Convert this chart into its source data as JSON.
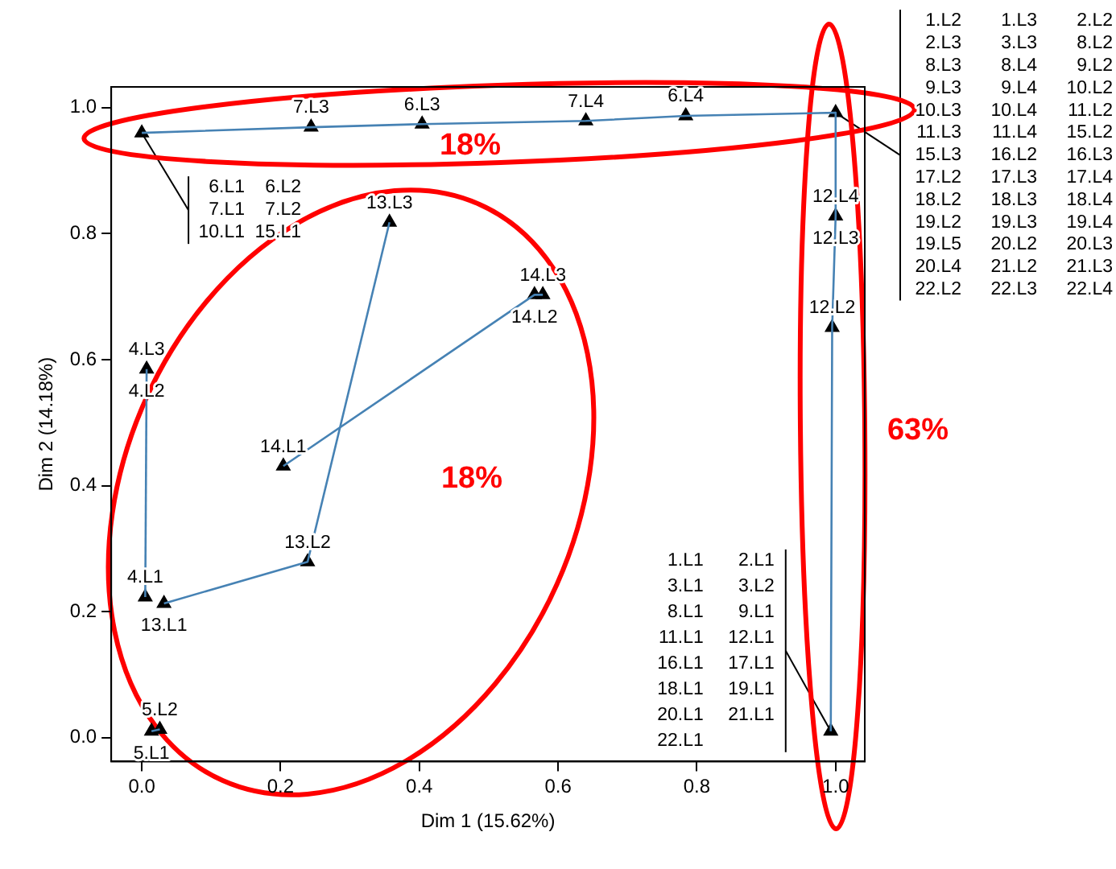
{
  "chart_data": {
    "type": "scatter",
    "xlabel": "Dim 1 (15.62%)",
    "ylabel": "Dim 2 (14.18%)",
    "xlim": [
      -0.044,
      1.042
    ],
    "ylim": [
      -0.038,
      1.033
    ],
    "xticks": [
      {
        "value": 0,
        "label": "0.0"
      },
      0.2,
      0.4,
      0.6,
      0.8,
      {
        "value": 1,
        "label": "1.0"
      }
    ],
    "yticks": [
      {
        "value": 0,
        "label": "0.0"
      },
      0.2,
      0.4,
      0.6,
      0.8,
      {
        "value": 1,
        "label": "1.0"
      }
    ],
    "grid": false,
    "legend": false,
    "series": [
      {
        "type": "line",
        "color": "#4682b4",
        "marker": "none",
        "x": [
          0,
          0.244,
          0.404,
          0.64,
          0.784,
          1
        ],
        "values": [
          0.96,
          0.969,
          0.974,
          0.979,
          0.987,
          0.992
        ]
      },
      {
        "type": "line",
        "color": "#4682b4",
        "marker": "none",
        "x": [
          1,
          1,
          0.995,
          0.993
        ],
        "values": [
          0.992,
          0.828,
          0.651,
          0.01
        ]
      },
      {
        "type": "line",
        "color": "#4682b4",
        "marker": "none",
        "x": [
          0.005,
          0.007
        ],
        "values": [
          0.223,
          0.585
        ]
      },
      {
        "type": "line",
        "color": "#4682b4",
        "marker": "none",
        "x": [
          0.032,
          0.239,
          0.357
        ],
        "values": [
          0.213,
          0.279,
          0.818
        ]
      },
      {
        "type": "line",
        "color": "#4682b4",
        "marker": "none",
        "x": [
          0.204,
          0.566,
          0.578
        ],
        "values": [
          0.431,
          0.703,
          0.703
        ]
      },
      {
        "type": "line",
        "color": "#4682b4",
        "marker": "none",
        "x": [
          0.014,
          0.026
        ],
        "values": [
          0.01,
          0.013
        ]
      },
      {
        "color": "#000000",
        "marker": "triangle",
        "x": [
          0,
          0.244,
          0.404,
          0.64,
          0.784,
          1,
          1,
          0.995,
          0.993,
          0.357,
          0.578,
          0.566,
          0.007,
          0.204,
          0.239,
          0.005,
          0.032,
          0.026,
          0.014
        ],
        "values": [
          0.96,
          0.969,
          0.974,
          0.979,
          0.987,
          0.992,
          0.828,
          0.651,
          0.01,
          0.818,
          0.703,
          0.703,
          0.585,
          0.431,
          0.279,
          0.223,
          0.213,
          0.013,
          0.01
        ]
      }
    ],
    "annotations": [
      "18%",
      "18%",
      "63%",
      {
        "text": "6.L1",
        "x": 0,
        "y": 0.96
      },
      "6.L2",
      "7.L1",
      "7.L2",
      "10.L1",
      "15.L1",
      "1.L2",
      "1.L3",
      "2.L2",
      "2.L3",
      "3.L3",
      "8.L2",
      "8.L3",
      "8.L4",
      "9.L2",
      "9.L3",
      "9.L4",
      "10.L2",
      "10.L3",
      "10.L4",
      "11.L2",
      {
        "text": "11.L3",
        "x": 1,
        "y": 0.992
      },
      "11.L4",
      "15.L2",
      "15.L3",
      "16.L2",
      "16.L3",
      "17.L2",
      "17.L3",
      "17.L4",
      "18.L2",
      "18.L3",
      "18.L4",
      "19.L2",
      "19.L3",
      "19.L4",
      "19.L5",
      "20.L2",
      "20.L3",
      "20.L4",
      "21.L2",
      "21.L3",
      "22.L2",
      "22.L3",
      "22.L4",
      "1.L1",
      "2.L1",
      "3.L1",
      "3.L2",
      "8.L1",
      "9.L1",
      "11.L1",
      {
        "text": "12.L1",
        "x": 0.993,
        "y": 0.01
      },
      "16.L1",
      "17.L1",
      "18.L1",
      "19.L1",
      "20.L1",
      "21.L1",
      "22.L1",
      {
        "text": "7.L3",
        "x": 0.244,
        "y": 0.969
      },
      {
        "text": "6.L3",
        "x": 0.404,
        "y": 0.974
      },
      {
        "text": "7.L4",
        "x": 0.64,
        "y": 0.979
      },
      {
        "text": "6.L4",
        "x": 0.784,
        "y": 0.987
      },
      {
        "text": "12.L4",
        "x": 1,
        "y": 0.828
      },
      {
        "text": "12.L3",
        "x": 1,
        "y": 0.828
      },
      {
        "text": "12.L2",
        "x": 0.995,
        "y": 0.651
      },
      {
        "text": "13.L3",
        "x": 0.357,
        "y": 0.818
      },
      {
        "text": "14.L3",
        "x": 0.578,
        "y": 0.703
      },
      {
        "text": "14.L2",
        "x": 0.566,
        "y": 0.703
      },
      {
        "text": "4.L3",
        "x": 0.007,
        "y": 0.585
      },
      {
        "text": "4.L2",
        "x": 0.007,
        "y": 0.585
      },
      {
        "text": "14.L1",
        "x": 0.204,
        "y": 0.431
      },
      {
        "text": "13.L2",
        "x": 0.239,
        "y": 0.279
      },
      {
        "text": "4.L1",
        "x": 0.005,
        "y": 0.223
      },
      {
        "text": "13.L1",
        "x": 0.032,
        "y": 0.213
      },
      {
        "text": "5.L2",
        "x": 0.026,
        "y": 0.013
      },
      {
        "text": "5.L1",
        "x": 0.014,
        "y": 0.01
      }
    ]
  }
}
